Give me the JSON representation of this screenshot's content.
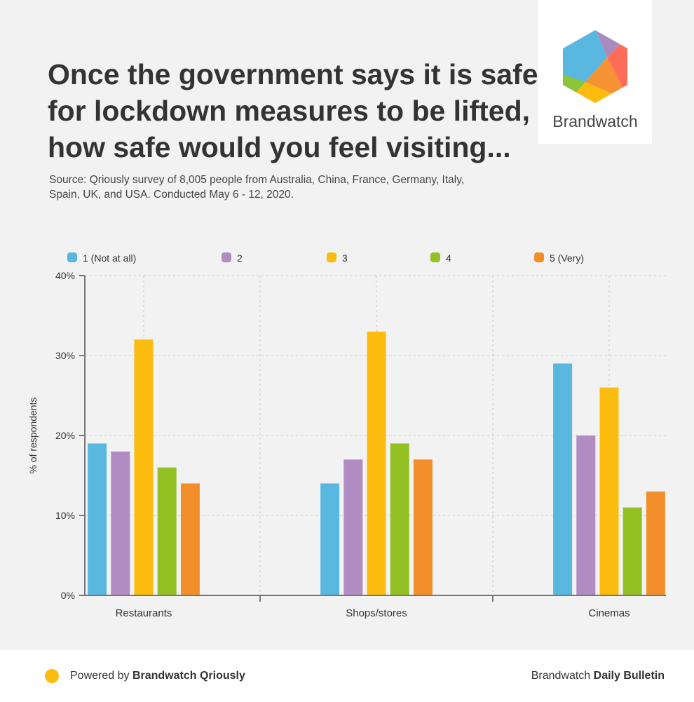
{
  "title": "Once the government says it is safe for lockdown measures to be lifted, how safe would you feel visiting...",
  "source": "Source: Qriously survey of 8,005 people from Australia, China, France, Germany, Italy, Spain, UK, and USA. Conducted May 6 - 12, 2020.",
  "logo": {
    "text": "Brandwatch"
  },
  "footer": {
    "powered_prefix": "Powered by ",
    "powered_brand": "Brandwatch Qriously",
    "bulletin_prefix": "Brandwatch ",
    "bulletin_brand": "Daily Bulletin"
  },
  "chart_data": {
    "type": "bar",
    "categories": [
      "Restaurants",
      "Shops/stores",
      "Cinemas"
    ],
    "series": [
      {
        "name": "1 (Not at all)",
        "color": "#5ab8e0",
        "values": [
          19,
          14,
          29
        ]
      },
      {
        "name": "2",
        "color": "#b08cc2",
        "values": [
          18,
          17,
          20
        ]
      },
      {
        "name": "3",
        "color": "#fbbc0f",
        "values": [
          32,
          33,
          26
        ]
      },
      {
        "name": "4",
        "color": "#93c023",
        "values": [
          16,
          19,
          11
        ]
      },
      {
        "name": "5 (Very)",
        "color": "#f38f2a",
        "values": [
          14,
          17,
          13
        ]
      }
    ],
    "ylabel": "% of respondents",
    "ylim": [
      0,
      40
    ],
    "yticks": [
      "0%",
      "10%",
      "20%",
      "30%",
      "40%"
    ],
    "grid": true,
    "legend": "top"
  }
}
